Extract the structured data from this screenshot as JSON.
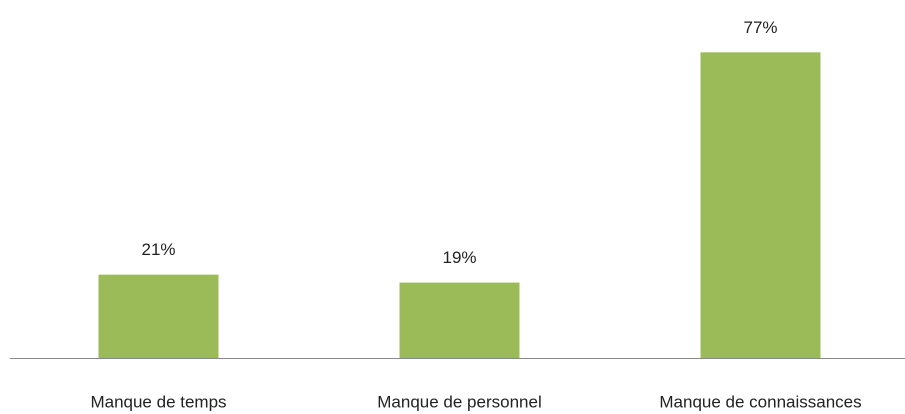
{
  "chart_data": {
    "type": "bar",
    "categories": [
      "Manque de temps",
      "Manque de personnel",
      "Manque de connaissances"
    ],
    "values": [
      21,
      19,
      77
    ],
    "value_labels": [
      "21%",
      "19%",
      "77%"
    ],
    "color": "#9bbb59"
  }
}
